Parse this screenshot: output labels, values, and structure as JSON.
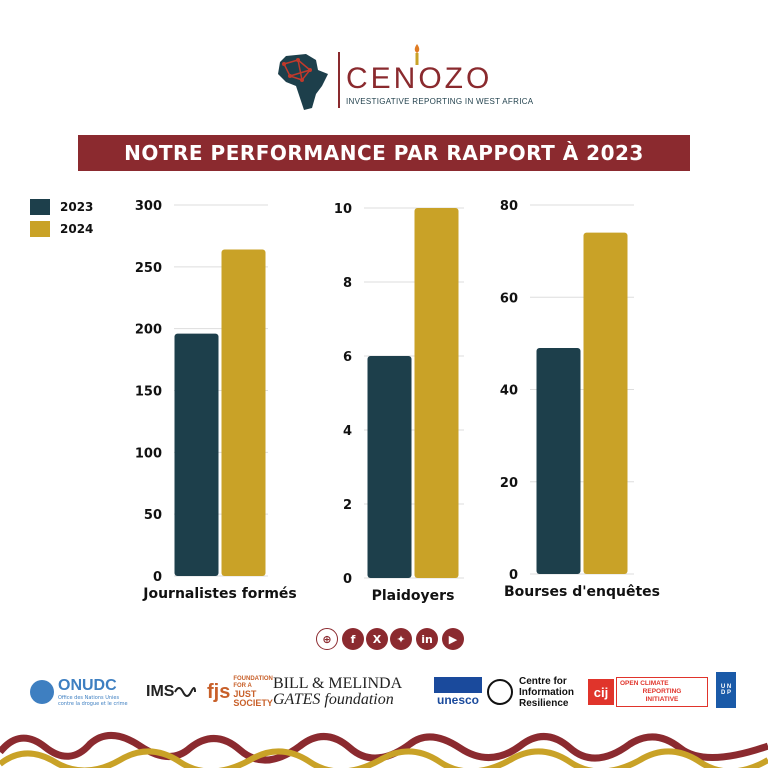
{
  "header": {
    "logo_name": "CENOZO",
    "logo_tagline": "INVESTIGATIVE REPORTING IN WEST AFRICA"
  },
  "banner": {
    "title": "NOTRE PERFORMANCE PAR RAPPORT À 2023"
  },
  "legend": [
    {
      "label": "2023",
      "color": "#1d3f4b"
    },
    {
      "label": "2024",
      "color": "#c9a227"
    }
  ],
  "chart_data": [
    {
      "type": "bar",
      "categories": [
        "Journalistes formés"
      ],
      "series": [
        {
          "name": "2023",
          "values": [
            196
          ]
        },
        {
          "name": "2024",
          "values": [
            264
          ]
        }
      ],
      "ylim": [
        0,
        300
      ],
      "yticks": [
        0,
        50,
        100,
        150,
        200,
        250,
        300
      ],
      "grid": true
    },
    {
      "type": "bar",
      "categories": [
        "Plaidoyers"
      ],
      "series": [
        {
          "name": "2023",
          "values": [
            6
          ]
        },
        {
          "name": "2024",
          "values": [
            10
          ]
        }
      ],
      "ylim": [
        0,
        10
      ],
      "yticks": [
        0,
        2,
        4,
        6,
        8,
        10
      ],
      "grid": true
    },
    {
      "type": "bar",
      "categories": [
        "Bourses d'enquêtes"
      ],
      "series": [
        {
          "name": "2023",
          "values": [
            49
          ]
        },
        {
          "name": "2024",
          "values": [
            74
          ]
        }
      ],
      "ylim": [
        0,
        80
      ],
      "yticks": [
        0,
        20,
        40,
        60,
        80
      ],
      "grid": true
    }
  ],
  "social": [
    "web-icon",
    "facebook-icon",
    "x-icon",
    "bluesky-icon",
    "linkedin-icon",
    "youtube-icon"
  ],
  "partners": {
    "onudc": {
      "name": "ONUDC",
      "sub1": "Office des Nations Unies",
      "sub2": "contre la drogue et le crime"
    },
    "ims": {
      "name": "IMS"
    },
    "fjs": {
      "abbr": "fjs",
      "line1": "FOUNDATION",
      "line2": "FOR A",
      "line3": "JUST",
      "line4": "SOCIETY"
    },
    "gates": {
      "line1": "BILL & MELINDA",
      "line2": "GATES foundation"
    },
    "unesco": {
      "name": "unesco"
    },
    "cir": {
      "line1": "Centre for",
      "line2": "Information",
      "line3": "Resilience"
    },
    "cij": {
      "abbr": "cij",
      "line1": "OPEN CLIMATE",
      "line2": "REPORTING",
      "line3": "INITIATIVE"
    },
    "undp": {
      "line1": "U N",
      "line2": "D P"
    }
  }
}
